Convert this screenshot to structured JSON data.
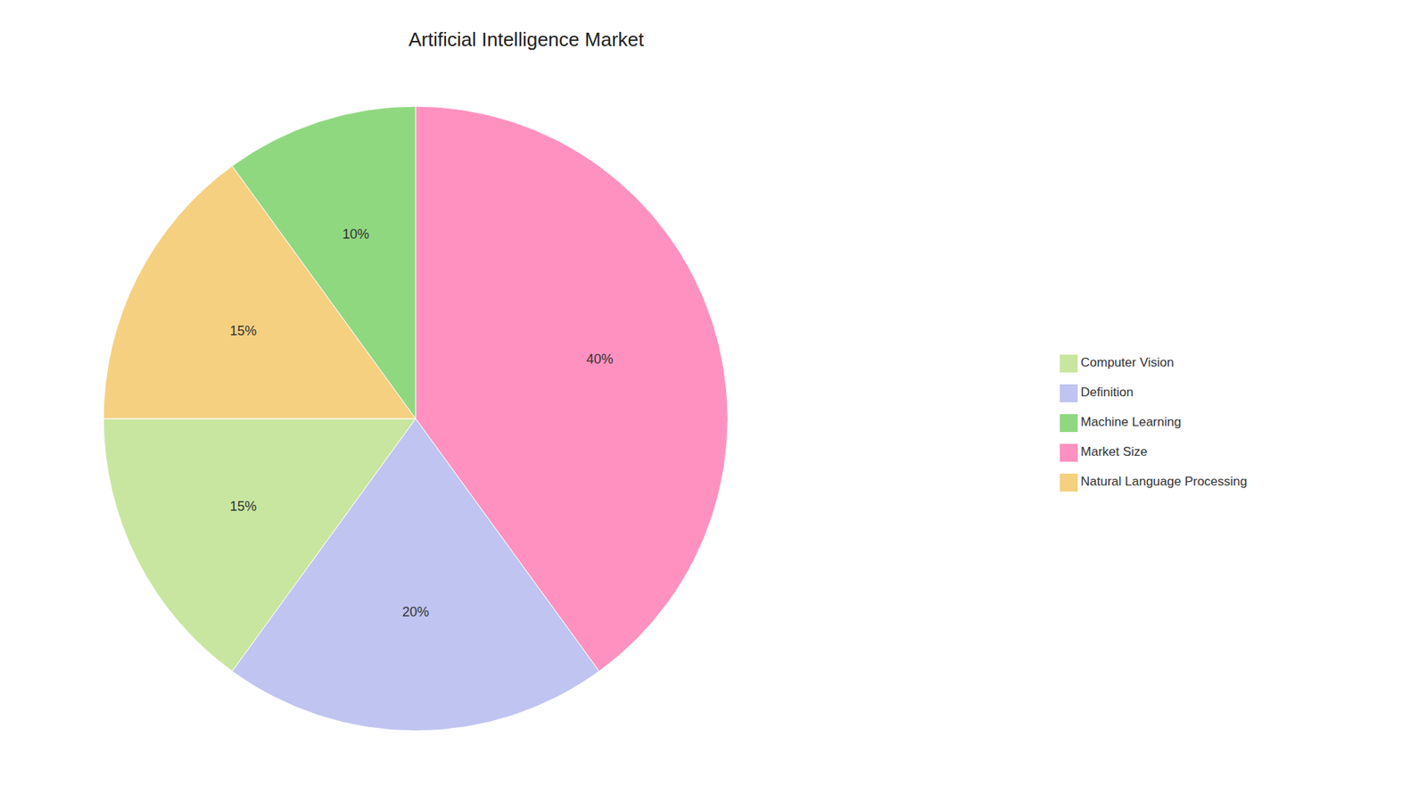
{
  "chart_data": {
    "type": "pie",
    "title": "Artificial Intelligence Market",
    "categories": [
      "Market Size",
      "Definition",
      "Computer Vision",
      "Natural Language Processing",
      "Machine Learning"
    ],
    "values": [
      40,
      20,
      15,
      15,
      10
    ],
    "value_labels": [
      "40%",
      "20%",
      "15%",
      "15%",
      "10%"
    ],
    "colors": [
      "#FF91C0",
      "#C0C4F0",
      "#C8E6A0",
      "#F5D080",
      "#90D880"
    ],
    "data_labels": true,
    "legend": "right"
  }
}
